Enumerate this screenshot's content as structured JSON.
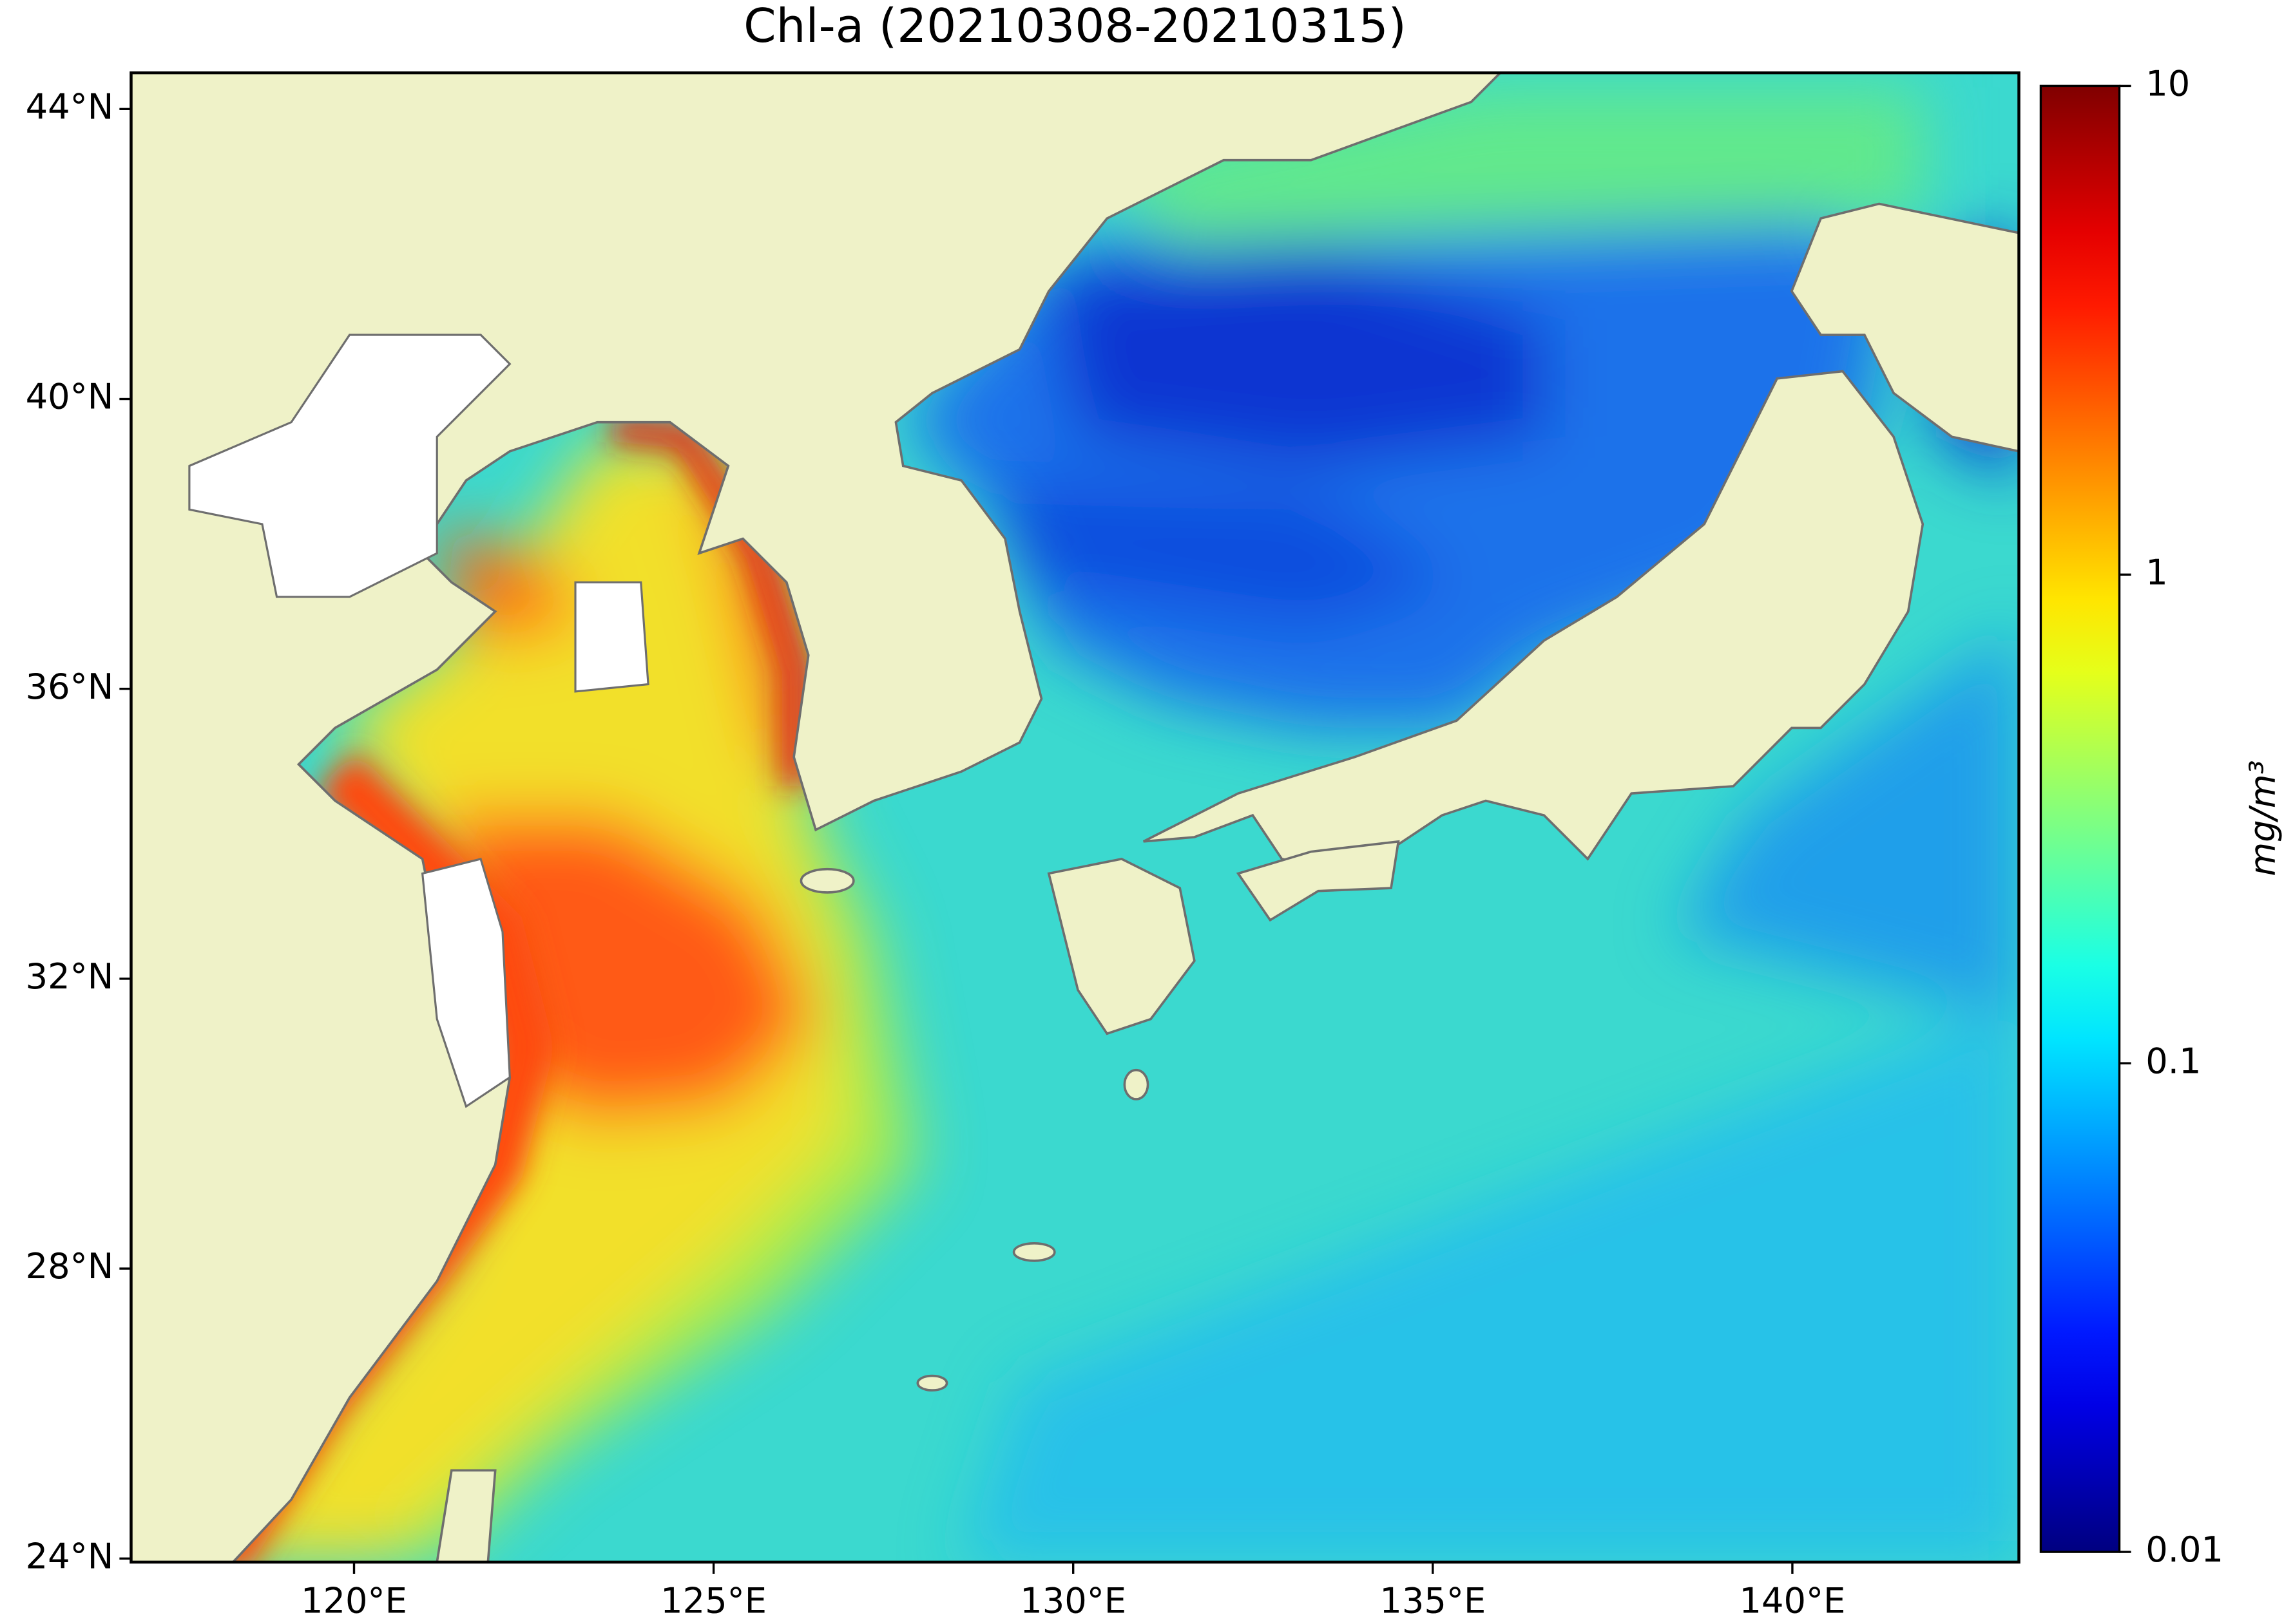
{
  "chart_data": {
    "type": "map",
    "title": "Chl-a (20210308-20210315)",
    "xlim": [
      116.9,
      143.15
    ],
    "ylim": [
      23.95,
      44.5
    ],
    "xticks": [
      {
        "value": 120,
        "label": "120°E"
      },
      {
        "value": 125,
        "label": "125°E"
      },
      {
        "value": 130,
        "label": "130°E"
      },
      {
        "value": 135,
        "label": "135°E"
      },
      {
        "value": 140,
        "label": "140°E"
      }
    ],
    "yticks": [
      {
        "value": 24,
        "label": "24°N"
      },
      {
        "value": 28,
        "label": "28°N"
      },
      {
        "value": 32,
        "label": "32°N"
      },
      {
        "value": 36,
        "label": "36°N"
      },
      {
        "value": 40,
        "label": "40°N"
      },
      {
        "value": 44,
        "label": "44°N"
      }
    ],
    "colorbar": {
      "label": "mg/m³",
      "scale": "log",
      "lim": [
        0.01,
        10
      ],
      "ticks": [
        0.01,
        0.1,
        1,
        10
      ],
      "colormap": "jet"
    }
  }
}
